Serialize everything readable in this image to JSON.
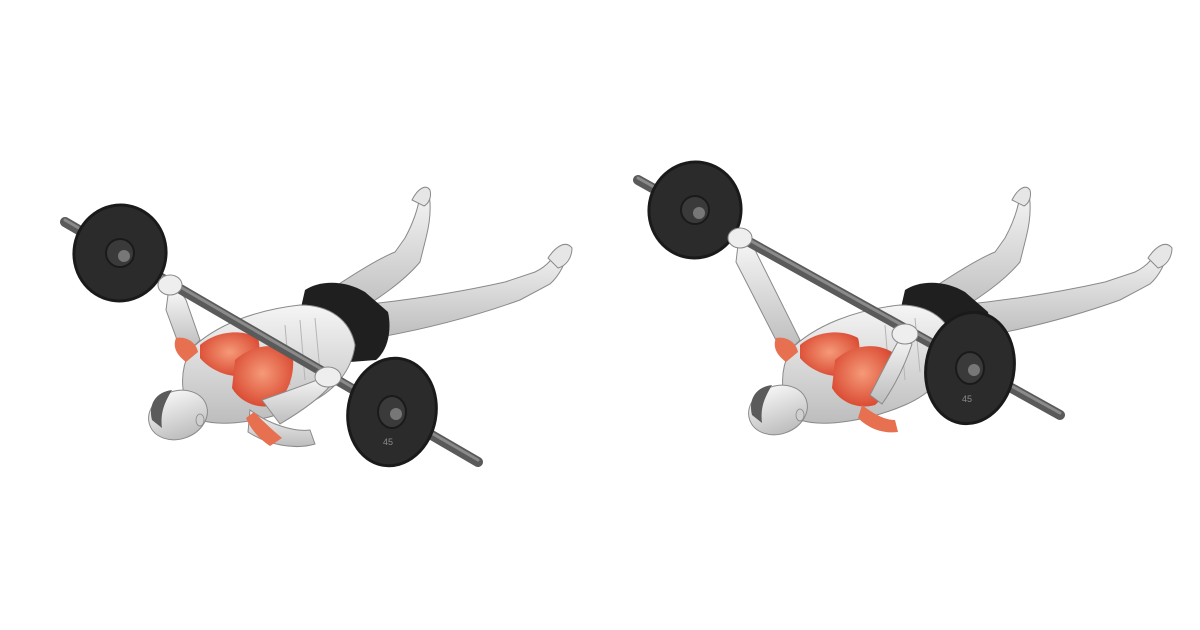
{
  "image": {
    "plate_label": "45",
    "colors": {
      "background": "#ffffff",
      "plate": "#2b2b2b",
      "plate_rim": "#1a1a1a",
      "bar": "#5a5a5a",
      "bar_highlight": "#8a8a8a",
      "skin_light": "#f1f1f1",
      "skin_mid": "#d4d4d4",
      "skin_shadow": "#a9a9a9",
      "muscle_highlight": "#e0553a",
      "muscle_light": "#f08a6a",
      "shorts": "#1f1f1f",
      "hair": "#5b5b5b"
    },
    "figures": [
      {
        "name": "start-position",
        "highlighted_muscles": [
          "chest",
          "front-deltoid"
        ]
      },
      {
        "name": "end-position",
        "highlighted_muscles": [
          "chest",
          "front-deltoid"
        ]
      }
    ]
  }
}
